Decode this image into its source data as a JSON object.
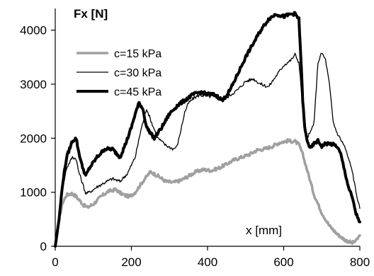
{
  "chart_data": {
    "type": "line",
    "xlabel": "x [mm]",
    "ylabel": "Fx  [N]",
    "xlim": [
      0,
      800
    ],
    "ylim": [
      0,
      4400
    ],
    "x_ticks": [
      "0",
      "200",
      "400",
      "600",
      "800"
    ],
    "y_ticks": [
      "0",
      "1000",
      "2000",
      "3000",
      "4000"
    ],
    "grid": false,
    "legend_position": "top-left",
    "series": [
      {
        "name": "c=15 kPa",
        "color": "#a0a0a0",
        "line_weight": "medium",
        "x": [
          0,
          10,
          20,
          30,
          45,
          55,
          65,
          75,
          85,
          100,
          120,
          140,
          160,
          170,
          180,
          195,
          210,
          230,
          250,
          270,
          290,
          310,
          330,
          350,
          370,
          390,
          410,
          430,
          450,
          470,
          490,
          510,
          530,
          550,
          570,
          590,
          610,
          630,
          640,
          650,
          660,
          670,
          680,
          700,
          720,
          740,
          760,
          780,
          790,
          800
        ],
        "y": [
          0,
          500,
          820,
          950,
          980,
          920,
          840,
          760,
          720,
          780,
          920,
          1020,
          1050,
          990,
          950,
          920,
          1000,
          1200,
          1380,
          1300,
          1200,
          1180,
          1220,
          1300,
          1380,
          1420,
          1400,
          1450,
          1520,
          1600,
          1650,
          1700,
          1780,
          1800,
          1850,
          1920,
          1950,
          1940,
          1880,
          1700,
          1450,
          1200,
          950,
          620,
          380,
          230,
          120,
          60,
          100,
          200
        ]
      },
      {
        "name": "c=30 kPa",
        "color": "#000000",
        "line_weight": "thin",
        "x": [
          0,
          10,
          20,
          30,
          45,
          55,
          60,
          70,
          80,
          90,
          110,
          130,
          150,
          170,
          190,
          210,
          225,
          240,
          255,
          270,
          290,
          310,
          320,
          330,
          340,
          350,
          365,
          380,
          400,
          420,
          440,
          460,
          480,
          500,
          520,
          540,
          560,
          580,
          600,
          620,
          630,
          640,
          645,
          650,
          655,
          660,
          670,
          680,
          690,
          700,
          710,
          720,
          730,
          740,
          760,
          780,
          790,
          800
        ],
        "y": [
          0,
          500,
          1100,
          1450,
          1650,
          1620,
          1420,
          1200,
          980,
          1000,
          1100,
          1180,
          1250,
          1200,
          1350,
          1650,
          2150,
          2550,
          2250,
          2000,
          1870,
          1800,
          1850,
          2150,
          2480,
          2650,
          2750,
          2800,
          2770,
          2780,
          2700,
          2800,
          2900,
          3050,
          3100,
          3000,
          2950,
          3150,
          3350,
          3450,
          3550,
          3400,
          3000,
          2600,
          2300,
          2000,
          2100,
          2300,
          3400,
          3580,
          3450,
          3000,
          2300,
          2100,
          1850,
          1400,
          1000,
          700
        ]
      },
      {
        "name": "c=45 kPa",
        "color": "#000000",
        "line_weight": "thick",
        "x": [
          0,
          10,
          20,
          30,
          45,
          55,
          60,
          70,
          80,
          90,
          110,
          130,
          150,
          170,
          185,
          200,
          210,
          220,
          230,
          240,
          260,
          280,
          300,
          320,
          340,
          360,
          380,
          400,
          420,
          440,
          460,
          480,
          500,
          520,
          540,
          560,
          580,
          600,
          620,
          630,
          640,
          645,
          650,
          655,
          660,
          670,
          680,
          690,
          700,
          710,
          720,
          730,
          740,
          750,
          760,
          770,
          780,
          790,
          800
        ],
        "y": [
          0,
          500,
          1200,
          1650,
          1950,
          2000,
          1800,
          1500,
          1300,
          1450,
          1650,
          1800,
          1800,
          1650,
          1900,
          2200,
          2450,
          2650,
          2550,
          2200,
          2000,
          2200,
          2450,
          2600,
          2700,
          2800,
          2850,
          2820,
          2800,
          2700,
          2900,
          3200,
          3500,
          3750,
          4000,
          4200,
          4300,
          4250,
          4300,
          4300,
          4200,
          3500,
          2700,
          2200,
          2000,
          1800,
          1900,
          1950,
          1850,
          1900,
          1900,
          1880,
          1850,
          1700,
          1400,
          1100,
          900,
          600,
          450
        ]
      }
    ]
  }
}
